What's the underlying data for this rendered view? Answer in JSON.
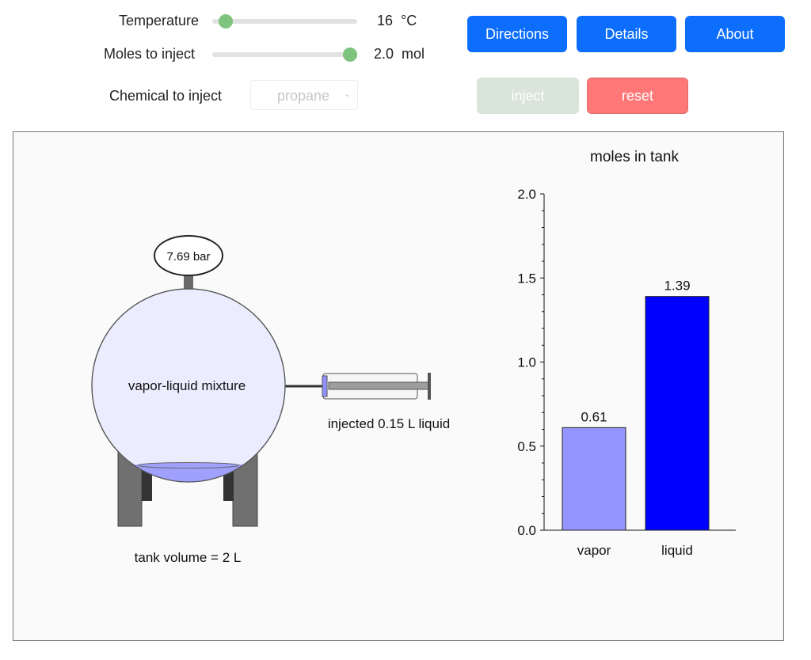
{
  "controls": {
    "temperature": {
      "label": "Temperature",
      "value": "16",
      "unit": "°C",
      "level": 0.05
    },
    "moles": {
      "label": "Moles to inject",
      "value": "2.0",
      "unit": "mol",
      "level": 1.0
    },
    "chemical": {
      "label": "Chemical to inject",
      "selected": "propane"
    }
  },
  "buttons": {
    "directions": "Directions",
    "details": "Details",
    "about": "About",
    "inject": "inject",
    "reset": "reset"
  },
  "colors": {
    "primary": "#0d6efd",
    "slider_thumb": "#7ec37e",
    "reset": "#ff7777",
    "inject_disabled": "#d9e4da",
    "vapor_bar": "#9494ff",
    "liquid_bar": "#0000ff",
    "tank_fill": "#ececff"
  },
  "tank": {
    "pressure": "7.69 bar",
    "contents": "vapor-liquid mixture",
    "injected": "injected 0.15 L liquid",
    "volume": "tank volume = 2 L"
  },
  "chart_data": {
    "type": "bar",
    "title": "moles in tank",
    "categories": [
      "vapor",
      "liquid"
    ],
    "values": [
      0.61,
      1.39
    ],
    "value_labels": [
      "0.61",
      "1.39"
    ],
    "ylim": [
      0,
      2.0
    ],
    "yticks": [
      "0.0",
      "0.5",
      "1.0",
      "1.5",
      "2.0"
    ],
    "xlabel": "",
    "ylabel": "",
    "grid": false
  }
}
